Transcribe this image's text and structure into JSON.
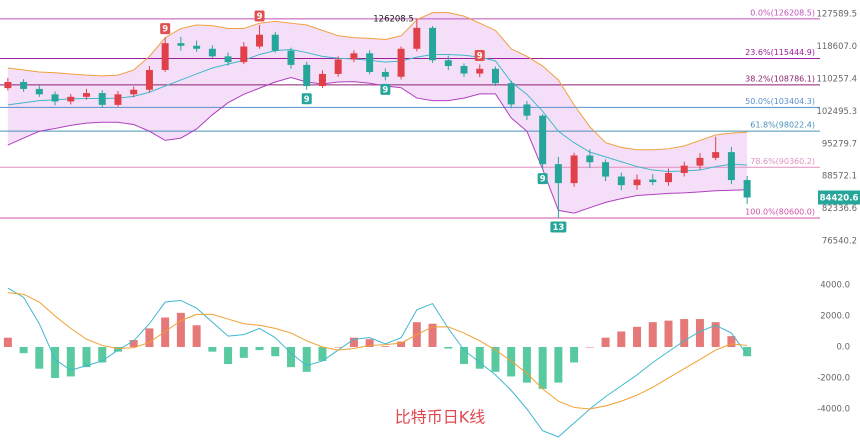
{
  "chart_data": [
    {
      "type": "candlestick",
      "log_scale": true,
      "ylim": [
        70900,
        131700
      ],
      "yticks": [
        127589.5,
        {
          "value": 118607,
          "label": "118607.0"
        },
        110257.4,
        102495.3,
        95279.7,
        88572.1,
        82336.6,
        76540.2
      ],
      "up_color": "#e0404a",
      "down_color": "#26a69a",
      "open": [
        108000,
        109500,
        107800,
        106500,
        104800,
        105900,
        106800,
        104000,
        106500,
        107600,
        112500,
        119500,
        118800,
        118000,
        116000,
        114500,
        118600,
        121800,
        117500,
        113800,
        108500,
        111500,
        115200,
        116800,
        112000,
        110800,
        118000,
        123700,
        115000,
        113500,
        111600,
        112800,
        109200,
        104100,
        101500,
        91000,
        87200,
        92800,
        91400,
        88500,
        86800,
        87900,
        87400,
        89200,
        90700,
        92300,
        93500,
        87800
      ],
      "high": [
        110500,
        110200,
        108600,
        107200,
        106600,
        107800,
        107500,
        107300,
        108400,
        113500,
        121000,
        121200,
        120200,
        118900,
        117000,
        119800,
        124500,
        122600,
        118300,
        114600,
        112400,
        116000,
        117600,
        117600,
        112900,
        118600,
        126208.5,
        124200,
        116200,
        114200,
        113900,
        113400,
        109800,
        104900,
        101900,
        92500,
        93400,
        94100,
        92000,
        89300,
        88900,
        89000,
        90100,
        91500,
        93300,
        96800,
        94600,
        88600
      ],
      "low": [
        107400,
        107100,
        105900,
        103900,
        104100,
        105200,
        103300,
        103600,
        105800,
        107000,
        112000,
        117500,
        117200,
        115600,
        113600,
        114000,
        118000,
        117000,
        112800,
        107600,
        108000,
        110800,
        114500,
        111400,
        109900,
        110100,
        117300,
        114300,
        112500,
        110800,
        110700,
        108500,
        103200,
        100500,
        89900,
        80600,
        86500,
        90200,
        87600,
        85800,
        85900,
        86800,
        86700,
        88500,
        89900,
        91800,
        87000,
        83200
      ],
      "close": [
        109500,
        107800,
        106500,
        104800,
        105900,
        106800,
        104000,
        106500,
        107600,
        112500,
        119500,
        118800,
        118000,
        116000,
        114500,
        118600,
        121800,
        117500,
        113800,
        108500,
        111500,
        115200,
        116800,
        112000,
        110800,
        118000,
        123700,
        115000,
        113500,
        111600,
        112800,
        109200,
        104100,
        101500,
        91000,
        87200,
        92800,
        91400,
        88500,
        86800,
        87900,
        87400,
        89200,
        90700,
        92300,
        93500,
        87800,
        84420.6
      ],
      "upper": [
        113000,
        112500,
        112000,
        111800,
        111500,
        111200,
        111000,
        111200,
        112500,
        116000,
        121000,
        123500,
        124500,
        124300,
        123500,
        123500,
        125000,
        125500,
        125000,
        124500,
        123000,
        121500,
        121000,
        120800,
        120500,
        121500,
        126000,
        128000,
        128000,
        127000,
        125000,
        123000,
        118000,
        116000,
        113500,
        110000,
        104000,
        99000,
        95500,
        94500,
        94000,
        94000,
        94200,
        94800,
        96000,
        97200,
        97600,
        97800
      ],
      "middle": [
        104000,
        104500,
        105000,
        105200,
        105400,
        105500,
        105500,
        105600,
        106000,
        107000,
        108500,
        110000,
        111500,
        113000,
        114000,
        115000,
        116500,
        117500,
        117800,
        117000,
        116000,
        115500,
        115300,
        115000,
        114500,
        114800,
        115800,
        116500,
        116500,
        116300,
        115800,
        114800,
        109500,
        106500,
        102500,
        98000,
        95500,
        93500,
        92500,
        91500,
        90500,
        89800,
        89500,
        89600,
        89800,
        90500,
        91000,
        90800
      ],
      "lower": [
        95000,
        96500,
        98000,
        98600,
        99300,
        99800,
        100000,
        100000,
        99500,
        98000,
        96000,
        96500,
        98500,
        101700,
        104500,
        106500,
        108000,
        109500,
        110600,
        109500,
        109000,
        109500,
        109600,
        109200,
        108500,
        108100,
        105600,
        105000,
        105000,
        105600,
        106600,
        106600,
        101000,
        98000,
        90000,
        82000,
        81500,
        82500,
        83500,
        84200,
        84800,
        85000,
        85200,
        85300,
        85500,
        85700,
        85800,
        85900
      ],
      "band_colors": {
        "upper": "#f0a040",
        "middle": "#40b8c8",
        "lower": "#b040c0",
        "fill": "#e8b8f0"
      },
      "fib_levels": [
        {
          "label": "0.0%(126208.5)",
          "value": 126208.5,
          "color": "#c050b8"
        },
        {
          "label": "23.6%(115444.9)",
          "value": 115444.9,
          "color": "#9c1f9c"
        },
        {
          "label": "38.2%(108786.1)",
          "value": 108786.1,
          "color": "#8c1f70"
        },
        {
          "label": "50.0%(103404.3)",
          "value": 103404.3,
          "color": "#5b8fd0"
        },
        {
          "label": "61.8%(98022.4)",
          "value": 98022.4,
          "color": "#4a90b8"
        },
        {
          "label": "78.6%(90360.2)",
          "value": 90360.2,
          "color": "#e090c0"
        },
        {
          "label": "100.0%(80600.0)",
          "value": 80600,
          "color": "#d050a8"
        }
      ],
      "last_price": 84420.6,
      "last_price_color": "#26a69a",
      "annotation": {
        "text": "126208.5",
        "value": 126208.5,
        "index": 26
      },
      "markers": [
        {
          "index": 10,
          "label": "9",
          "color": "#e05050",
          "position": "above"
        },
        {
          "index": 16,
          "label": "9",
          "color": "#e05050",
          "position": "above"
        },
        {
          "index": 30,
          "label": "9",
          "color": "#e05050",
          "position": "above"
        },
        {
          "index": 19,
          "label": "9",
          "color": "#26a69a",
          "position": "below"
        },
        {
          "index": 24,
          "label": "9",
          "color": "#26a69a",
          "position": "below"
        },
        {
          "index": 34,
          "label": "9",
          "color": "#26a69a",
          "position": "below"
        },
        {
          "index": 35,
          "label": "13",
          "color": "#26a69a",
          "position": "below"
        }
      ]
    },
    {
      "type": "macd",
      "ylim": [
        -6000,
        4450
      ],
      "yticks": [
        {
          "value": 4000,
          "label": "4000.0"
        },
        {
          "value": 2000,
          "label": "2000.0"
        },
        {
          "value": 0,
          "label": "0.0"
        },
        {
          "value": -2000,
          "label": "-2000.0"
        },
        {
          "value": -4000,
          "label": "-4000.0"
        }
      ],
      "up_color": "#e06060",
      "down_color": "#3cc08e",
      "dif_color": "#40b8d0",
      "dea_color": "#f0a030",
      "histogram": [
        600,
        -400,
        -1400,
        -2000,
        -1900,
        -1300,
        -1000,
        -300,
        450,
        1200,
        1900,
        2200,
        1400,
        -300,
        -1100,
        -700,
        -200,
        -600,
        -1300,
        -1600,
        -900,
        0,
        600,
        500,
        50,
        350,
        1600,
        1500,
        -100,
        -1100,
        -1400,
        -1600,
        -1900,
        -2300,
        -2700,
        -2300,
        -1000,
        0,
        600,
        1000,
        1300,
        1600,
        1700,
        1800,
        1800,
        1600,
        700,
        -600
      ],
      "dif": [
        3800,
        3200,
        1500,
        -800,
        -1500,
        -1200,
        -900,
        -200,
        400,
        1500,
        2900,
        3000,
        2500,
        1600,
        700,
        800,
        1200,
        600,
        -400,
        -1200,
        -900,
        -200,
        500,
        600,
        200,
        600,
        2400,
        2800,
        1200,
        -200,
        -1000,
        -1800,
        -2800,
        -4000,
        -5400,
        -5800,
        -4900,
        -4000,
        -3200,
        -2500,
        -1800,
        -1000,
        -300,
        400,
        1000,
        1400,
        900,
        -500
      ],
      "dea": [
        3500,
        3400,
        2900,
        2000,
        1200,
        500,
        100,
        -100,
        -50,
        300,
        1000,
        1700,
        2100,
        2100,
        1800,
        1500,
        1400,
        1200,
        900,
        400,
        0,
        -200,
        -100,
        100,
        150,
        250,
        800,
        1300,
        1300,
        900,
        400,
        -200,
        -900,
        -1700,
        -2700,
        -3500,
        -3900,
        -4000,
        -3800,
        -3500,
        -3100,
        -2600,
        -2000,
        -1400,
        -800,
        -200,
        200,
        100
      ]
    }
  ],
  "watermark": "比特币日K线"
}
